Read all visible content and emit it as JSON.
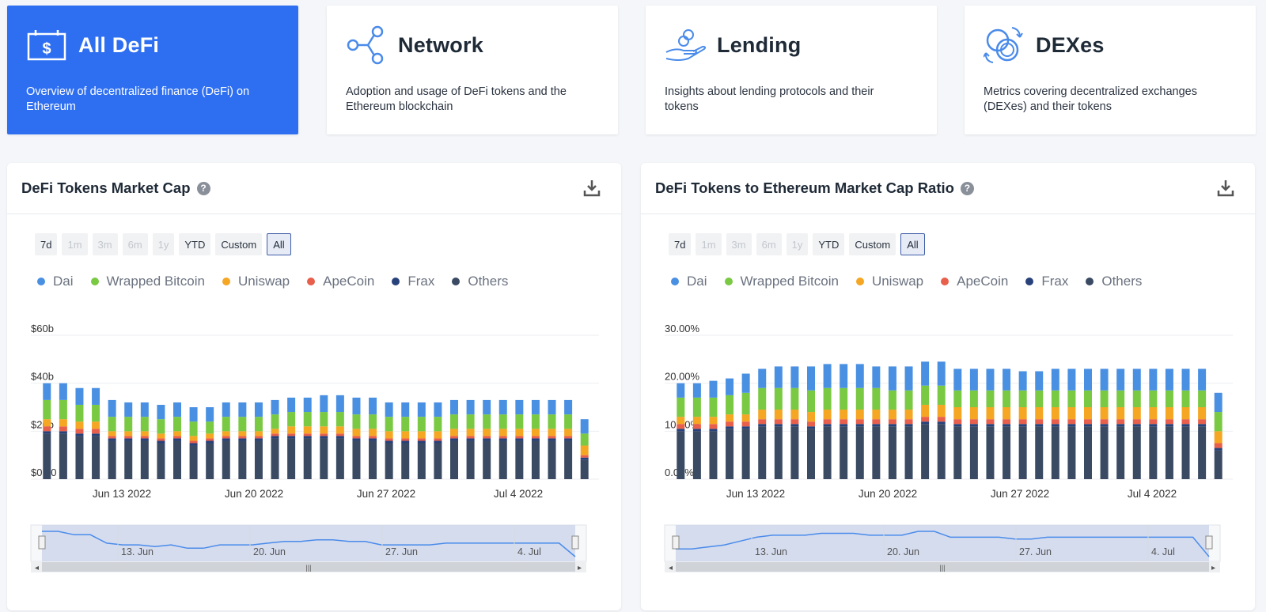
{
  "cards": [
    {
      "title": "All DeFi",
      "desc": "Overview of decentralized finance (DeFi) on Ethereum",
      "icon": "dollar-calendar-icon",
      "active": true
    },
    {
      "title": "Network",
      "desc": "Adoption and usage of DeFi tokens and the Ethereum blockchain",
      "icon": "network-nodes-icon",
      "active": false
    },
    {
      "title": "Lending",
      "desc": "Insights about lending protocols and their tokens",
      "icon": "hand-coins-icon",
      "active": false
    },
    {
      "title": "DEXes",
      "desc": "Metrics covering decentralized exchanges (DEXes) and their tokens",
      "icon": "exchange-coins-icon",
      "active": false
    }
  ],
  "range_buttons": [
    {
      "label": "7d",
      "state": "enabled"
    },
    {
      "label": "1m",
      "state": "disabled"
    },
    {
      "label": "3m",
      "state": "disabled"
    },
    {
      "label": "6m",
      "state": "disabled"
    },
    {
      "label": "1y",
      "state": "disabled"
    },
    {
      "label": "YTD",
      "state": "enabled"
    },
    {
      "label": "Custom",
      "state": "enabled"
    },
    {
      "label": "All",
      "state": "selected"
    }
  ],
  "legend": [
    {
      "name": "Dai",
      "color": "#4a90e2"
    },
    {
      "name": "Wrapped Bitcoin",
      "color": "#7ac943"
    },
    {
      "name": "Uniswap",
      "color": "#f5a623"
    },
    {
      "name": "ApeCoin",
      "color": "#e8604c"
    },
    {
      "name": "Frax",
      "color": "#27417a"
    },
    {
      "name": "Others",
      "color": "#3a4a63"
    }
  ],
  "navigator_labels": [
    "13. Jun",
    "20. Jun",
    "27. Jun",
    "4. Jul"
  ],
  "panels": [
    {
      "title": "DeFi Tokens Market Cap",
      "help": "?",
      "chart_data": {
        "type": "bar",
        "stacked": true,
        "x_axis_labels": [
          "Jun 13 2022",
          "Jun 20 2022",
          "Jun 27 2022",
          "Jul 4 2022"
        ],
        "y_ticks": [
          "$0.00",
          "$20b",
          "$40b",
          "$60b"
        ],
        "ylim": [
          0,
          60
        ],
        "y_unit": "billion USD",
        "series": [
          {
            "name": "Others",
            "values": [
              19,
              19,
              18,
              18,
              16,
              16,
              16,
              15,
              16,
              14,
              15,
              16,
              16,
              16,
              17,
              17,
              17,
              17,
              17,
              16,
              16,
              15,
              15,
              15,
              15,
              16,
              16,
              16,
              16,
              16,
              16,
              16,
              16,
              8
            ]
          },
          {
            "name": "Frax",
            "values": [
              1,
              1,
              1,
              1,
              1,
              1,
              1,
              1,
              1,
              1,
              1,
              1,
              1,
              1,
              1,
              1,
              1,
              1,
              1,
              1,
              1,
              1,
              1,
              1,
              1,
              1,
              1,
              1,
              1,
              1,
              1,
              1,
              1,
              1
            ]
          },
          {
            "name": "ApeCoin",
            "values": [
              2,
              2,
              2,
              2,
              1,
              1,
              1,
              1,
              1,
              1,
              1,
              1,
              1,
              1,
              1,
              1,
              1,
              1,
              1,
              1,
              1,
              1,
              1,
              1,
              1,
              1,
              1,
              1,
              1,
              1,
              1,
              1,
              1,
              1
            ]
          },
          {
            "name": "Uniswap",
            "values": [
              3,
              3,
              3,
              3,
              2,
              2,
              2,
              2,
              2,
              2,
              2,
              2,
              2,
              2,
              2,
              3,
              3,
              3,
              3,
              3,
              3,
              3,
              3,
              3,
              3,
              3,
              3,
              3,
              3,
              3,
              3,
              3,
              3,
              4
            ]
          },
          {
            "name": "Wrapped Bitcoin",
            "values": [
              8,
              8,
              7,
              7,
              6,
              6,
              6,
              6,
              6,
              6,
              5,
              6,
              6,
              6,
              6,
              6,
              6,
              6,
              6,
              6,
              6,
              6,
              6,
              6,
              6,
              6,
              6,
              6,
              6,
              6,
              6,
              6,
              6,
              5
            ]
          },
          {
            "name": "Dai",
            "values": [
              7,
              7,
              7,
              7,
              7,
              6,
              6,
              6,
              6,
              6,
              6,
              6,
              6,
              6,
              6,
              6,
              6,
              7,
              7,
              7,
              7,
              6,
              6,
              6,
              6,
              6,
              6,
              6,
              6,
              6,
              6,
              6,
              6,
              6
            ]
          }
        ]
      }
    },
    {
      "title": "DeFi Tokens to Ethereum Market Cap Ratio",
      "help": "?",
      "chart_data": {
        "type": "bar",
        "stacked": true,
        "x_axis_labels": [
          "Jun 13 2022",
          "Jun 20 2022",
          "Jun 27 2022",
          "Jul 4 2022"
        ],
        "y_ticks": [
          "0.00%",
          "10.00%",
          "20.00%",
          "30.00%"
        ],
        "ylim": [
          0,
          30
        ],
        "y_unit": "percent",
        "series": [
          {
            "name": "Others",
            "values": [
              10,
              10,
              10,
              10.5,
              10.5,
              11,
              11,
              11,
              10.5,
              11,
              11,
              11,
              11,
              11,
              11,
              11.5,
              11.5,
              11,
              11,
              11,
              11,
              11,
              11,
              11,
              11,
              11,
              11,
              11,
              11,
              11,
              11,
              11,
              11,
              6
            ]
          },
          {
            "name": "Frax",
            "values": [
              0.5,
              0.5,
              0.5,
              0.5,
              0.5,
              0.5,
              0.5,
              0.5,
              0.5,
              0.5,
              0.5,
              0.5,
              0.5,
              0.5,
              0.5,
              0.5,
              0.5,
              0.5,
              0.5,
              0.5,
              0.5,
              0.5,
              0.5,
              0.5,
              0.5,
              0.5,
              0.5,
              0.5,
              0.5,
              0.5,
              0.5,
              0.5,
              0.5,
              0.5
            ]
          },
          {
            "name": "ApeCoin",
            "values": [
              1,
              1,
              1,
              1,
              1,
              1,
              1,
              1,
              1,
              1,
              1,
              1,
              1,
              1,
              1,
              1,
              1,
              1,
              1,
              1,
              1,
              1,
              1,
              1,
              1,
              1,
              1,
              1,
              1,
              1,
              1,
              1,
              1,
              1
            ]
          },
          {
            "name": "Uniswap",
            "values": [
              1.5,
              1.5,
              1.5,
              1.5,
              1.5,
              2,
              2,
              2,
              2,
              2,
              2,
              2,
              2,
              2,
              2,
              2.5,
              2.5,
              2.5,
              2.5,
              2.5,
              2.5,
              2.5,
              2.5,
              2.5,
              2.5,
              2.5,
              2.5,
              2.5,
              2.5,
              2.5,
              2.5,
              2.5,
              2.5,
              2.5
            ]
          },
          {
            "name": "Wrapped Bitcoin",
            "values": [
              4,
              4,
              4,
              4,
              4.5,
              4.5,
              4.5,
              4.5,
              4.5,
              4.5,
              4.5,
              4.5,
              4.5,
              4,
              4,
              4,
              4,
              3.5,
              3.5,
              3.5,
              3.5,
              3.5,
              3.5,
              3.5,
              3.5,
              3.5,
              3.5,
              3.5,
              3.5,
              3.5,
              3.5,
              3.5,
              3.5,
              4
            ]
          },
          {
            "name": "Dai",
            "values": [
              3,
              3,
              3.5,
              3.5,
              4,
              4,
              4.5,
              4.5,
              5,
              5,
              5,
              5,
              4.5,
              5,
              5,
              5,
              5,
              4.5,
              4.5,
              4.5,
              4.5,
              4,
              4,
              4.5,
              4.5,
              4.5,
              4.5,
              4.5,
              4.5,
              4.5,
              4.5,
              4.5,
              4.5,
              4
            ]
          }
        ]
      }
    }
  ]
}
